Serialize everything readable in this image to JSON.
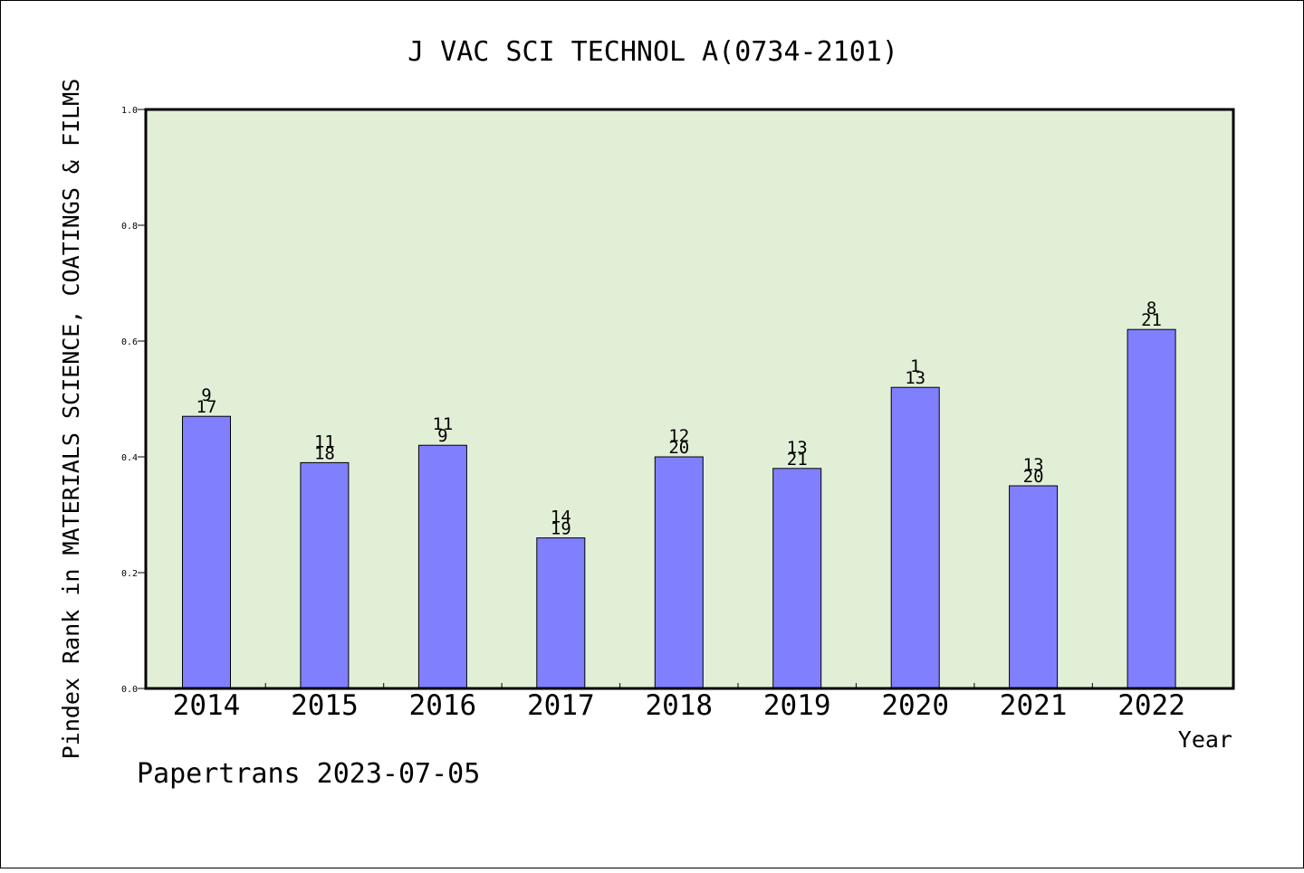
{
  "chart_data": {
    "type": "bar",
    "title": "J VAC SCI TECHNOL A(0734-2101)",
    "xlabel": "Year",
    "ylabel": "Pindex Rank in MATERIALS SCIENCE, COATINGS & FILMS",
    "footer": "Papertrans 2023-07-05",
    "categories": [
      "2014",
      "2015",
      "2016",
      "2017",
      "2018",
      "2019",
      "2020",
      "2021",
      "2022"
    ],
    "values": [
      0.47,
      0.39,
      0.42,
      0.26,
      0.4,
      0.38,
      0.52,
      0.35,
      0.62
    ],
    "labels_top": [
      "9",
      "11",
      "11",
      "14",
      "12",
      "13",
      "1",
      "13",
      "8"
    ],
    "labels_bottom": [
      "17",
      "18",
      "9",
      "19",
      "20",
      "21",
      "13",
      "20",
      "21"
    ],
    "ylim": [
      0,
      1.0
    ],
    "yticks": [
      "0.0",
      "0.2",
      "0.4",
      "0.6",
      "0.8",
      "1.0"
    ],
    "grid": false,
    "colors": {
      "plot_bg": "#e2efd7",
      "bar": "#8080ff",
      "axis": "#000000"
    }
  }
}
